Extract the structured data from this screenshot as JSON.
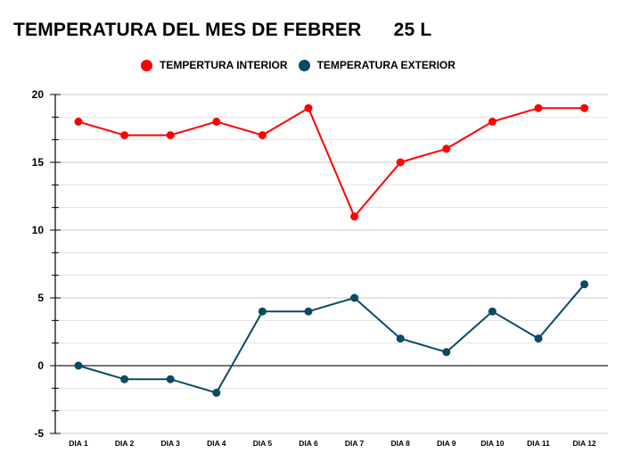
{
  "chart_data": {
    "type": "line",
    "title": "TEMPERATURA DEL MES DE FEBRER      25 L",
    "xlabel": "",
    "ylabel": "",
    "categories": [
      "DIA 1",
      "DIA 2",
      "DIA 3",
      "DIA 4",
      "DIA 5",
      "DIA 6",
      "DIA 7",
      "DIA 8",
      "DIA 9",
      "DIA 10",
      "DIA 11",
      "DIA 12"
    ],
    "ylim": [
      -5,
      20
    ],
    "yticks": [
      20,
      15,
      10,
      5,
      0,
      -5
    ],
    "ytick_labels": [
      "20",
      "15",
      "10",
      "5",
      "0",
      "-5"
    ],
    "minor_per_major": 3,
    "grid": true,
    "legend_position": "top",
    "series": [
      {
        "name": "TEMPERTURA INTERIOR",
        "color": "#ff0000",
        "values": [
          18,
          17,
          17,
          18,
          17,
          19,
          11,
          15,
          16,
          18,
          19,
          19
        ]
      },
      {
        "name": "TEMPERATURA EXTERIOR",
        "color": "#0b4a63",
        "values": [
          0,
          -1,
          -1,
          -2,
          4,
          4,
          5,
          2,
          1,
          4,
          2,
          6
        ]
      }
    ]
  }
}
